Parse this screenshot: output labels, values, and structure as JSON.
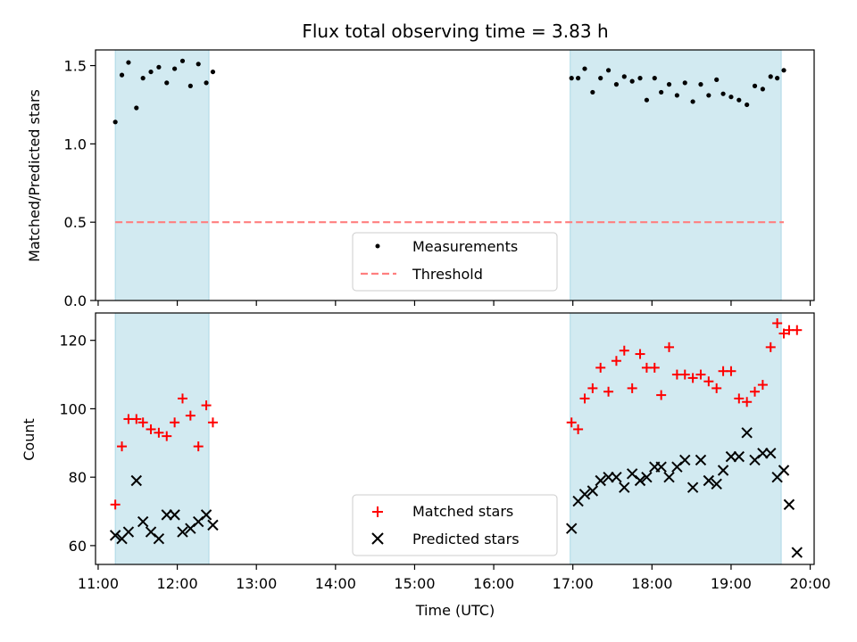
{
  "chart_data": {
    "title": "Flux total observing time = 3.83 h",
    "shaded_intervals": [
      [
        "11:13",
        "12:24"
      ],
      [
        "16:58",
        "19:38"
      ]
    ],
    "colors": {
      "shade": "#add8e6",
      "measurement": "#000000",
      "threshold": "#ff7f7f",
      "matched": "#ff0000",
      "predicted": "#000000"
    },
    "x_axis": {
      "label": "Time (UTC)",
      "range": [
        "10:58",
        "20:03"
      ],
      "ticks": [
        "11:00",
        "12:00",
        "13:00",
        "14:00",
        "15:00",
        "16:00",
        "17:00",
        "18:00",
        "19:00",
        "20:00"
      ]
    },
    "top_panel": {
      "type": "scatter",
      "ylabel": "Matched/Predicted stars",
      "ylim": [
        0,
        1.6
      ],
      "yticks": [
        "0.0",
        "0.5",
        "1.0",
        "1.5"
      ],
      "threshold": 0.5,
      "legend": [
        "Measurements",
        "Threshold"
      ],
      "legend_position": "lower-center",
      "series": [
        {
          "name": "Measurements",
          "marker": "dot",
          "x": [
            "11:13",
            "11:18",
            "11:23",
            "11:29",
            "11:34",
            "11:40",
            "11:46",
            "11:52",
            "11:58",
            "12:04",
            "12:10",
            "12:16",
            "12:22",
            "12:27",
            "16:59",
            "17:04",
            "17:09",
            "17:15",
            "17:21",
            "17:27",
            "17:33",
            "17:39",
            "17:45",
            "17:51",
            "17:56",
            "18:02",
            "18:07",
            "18:13",
            "18:19",
            "18:25",
            "18:31",
            "18:37",
            "18:43",
            "18:49",
            "18:54",
            "19:00",
            "19:06",
            "19:12",
            "19:18",
            "19:24",
            "19:30",
            "19:35",
            "19:40"
          ],
          "y": [
            1.14,
            1.44,
            1.52,
            1.23,
            1.42,
            1.46,
            1.49,
            1.39,
            1.48,
            1.53,
            1.37,
            1.51,
            1.39,
            1.46,
            1.42,
            1.42,
            1.48,
            1.33,
            1.42,
            1.47,
            1.38,
            1.43,
            1.4,
            1.42,
            1.28,
            1.42,
            1.33,
            1.38,
            1.31,
            1.39,
            1.27,
            1.38,
            1.31,
            1.41,
            1.32,
            1.3,
            1.28,
            1.25,
            1.37,
            1.35,
            1.43,
            1.42,
            1.47
          ]
        }
      ]
    },
    "bottom_panel": {
      "type": "scatter",
      "ylabel": "Count",
      "ylim": [
        54.5,
        128
      ],
      "yticks": [
        "60",
        "80",
        "100",
        "120"
      ],
      "legend": [
        "Matched stars",
        "Predicted stars"
      ],
      "legend_position": "lower-center",
      "series": [
        {
          "name": "Matched stars",
          "marker": "plus",
          "x": [
            "11:13",
            "11:18",
            "11:23",
            "11:29",
            "11:34",
            "11:40",
            "11:46",
            "11:52",
            "11:58",
            "12:04",
            "12:10",
            "12:16",
            "12:22",
            "12:27",
            "16:59",
            "17:04",
            "17:09",
            "17:15",
            "17:21",
            "17:27",
            "17:33",
            "17:39",
            "17:45",
            "17:51",
            "17:56",
            "18:02",
            "18:07",
            "18:13",
            "18:19",
            "18:25",
            "18:31",
            "18:37",
            "18:43",
            "18:49",
            "18:54",
            "19:00",
            "19:06",
            "19:12",
            "19:18",
            "19:24",
            "19:30",
            "19:35",
            "19:40",
            "19:44",
            "19:50"
          ],
          "y": [
            72,
            89,
            97,
            97,
            96,
            94,
            93,
            92,
            96,
            103,
            98,
            89,
            101,
            96,
            96,
            94,
            103,
            106,
            112,
            105,
            114,
            117,
            106,
            116,
            112,
            112,
            104,
            118,
            110,
            110,
            109,
            110,
            108,
            106,
            111,
            111,
            103,
            102,
            105,
            107,
            118,
            125,
            122,
            123,
            123
          ]
        },
        {
          "name": "Predicted stars",
          "marker": "x",
          "x": [
            "11:13",
            "11:18",
            "11:23",
            "11:29",
            "11:34",
            "11:40",
            "11:46",
            "11:52",
            "11:58",
            "12:04",
            "12:10",
            "12:16",
            "12:22",
            "12:27",
            "16:59",
            "17:04",
            "17:09",
            "17:15",
            "17:21",
            "17:27",
            "17:33",
            "17:39",
            "17:45",
            "17:51",
            "17:56",
            "18:02",
            "18:07",
            "18:13",
            "18:19",
            "18:25",
            "18:31",
            "18:37",
            "18:43",
            "18:49",
            "18:54",
            "19:00",
            "19:06",
            "19:12",
            "19:18",
            "19:24",
            "19:30",
            "19:35",
            "19:40",
            "19:44",
            "19:50"
          ],
          "y": [
            63,
            62,
            64,
            79,
            67,
            64,
            62,
            69,
            69,
            64,
            65,
            67,
            69,
            66,
            65,
            73,
            75,
            76,
            79,
            80,
            80,
            77,
            81,
            79,
            80,
            83,
            83,
            80,
            83,
            85,
            77,
            85,
            79,
            78,
            82,
            86,
            86,
            93,
            85,
            87,
            87,
            80,
            82,
            72,
            58
          ]
        }
      ]
    }
  }
}
